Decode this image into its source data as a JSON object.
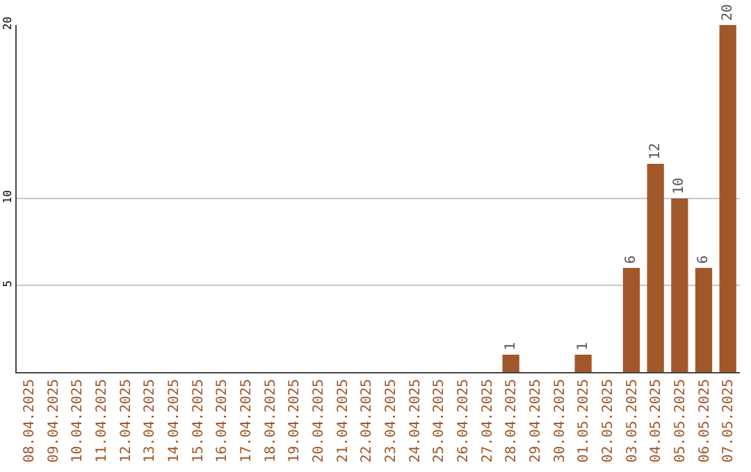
{
  "chart_data": {
    "type": "bar",
    "categories": [
      "08.04.2025",
      "09.04.2025",
      "10.04.2025",
      "11.04.2025",
      "12.04.2025",
      "13.04.2025",
      "14.04.2025",
      "15.04.2025",
      "16.04.2025",
      "17.04.2025",
      "18.04.2025",
      "19.04.2025",
      "20.04.2025",
      "21.04.2025",
      "22.04.2025",
      "23.04.2025",
      "24.04.2025",
      "25.04.2025",
      "26.04.2025",
      "27.04.2025",
      "28.04.2025",
      "29.04.2025",
      "30.04.2025",
      "01.05.2025",
      "02.05.2025",
      "03.05.2025",
      "04.05.2025",
      "05.05.2025",
      "06.05.2025",
      "07.05.2025"
    ],
    "values": [
      null,
      null,
      null,
      null,
      null,
      null,
      null,
      null,
      null,
      null,
      null,
      null,
      null,
      null,
      null,
      null,
      null,
      null,
      null,
      null,
      1,
      null,
      null,
      1,
      null,
      6,
      12,
      10,
      6,
      20
    ],
    "color": "#a0582a",
    "ylim": [
      0,
      20
    ],
    "yticks": [
      5,
      10,
      20
    ],
    "grid": "y",
    "data_labels": true
  }
}
